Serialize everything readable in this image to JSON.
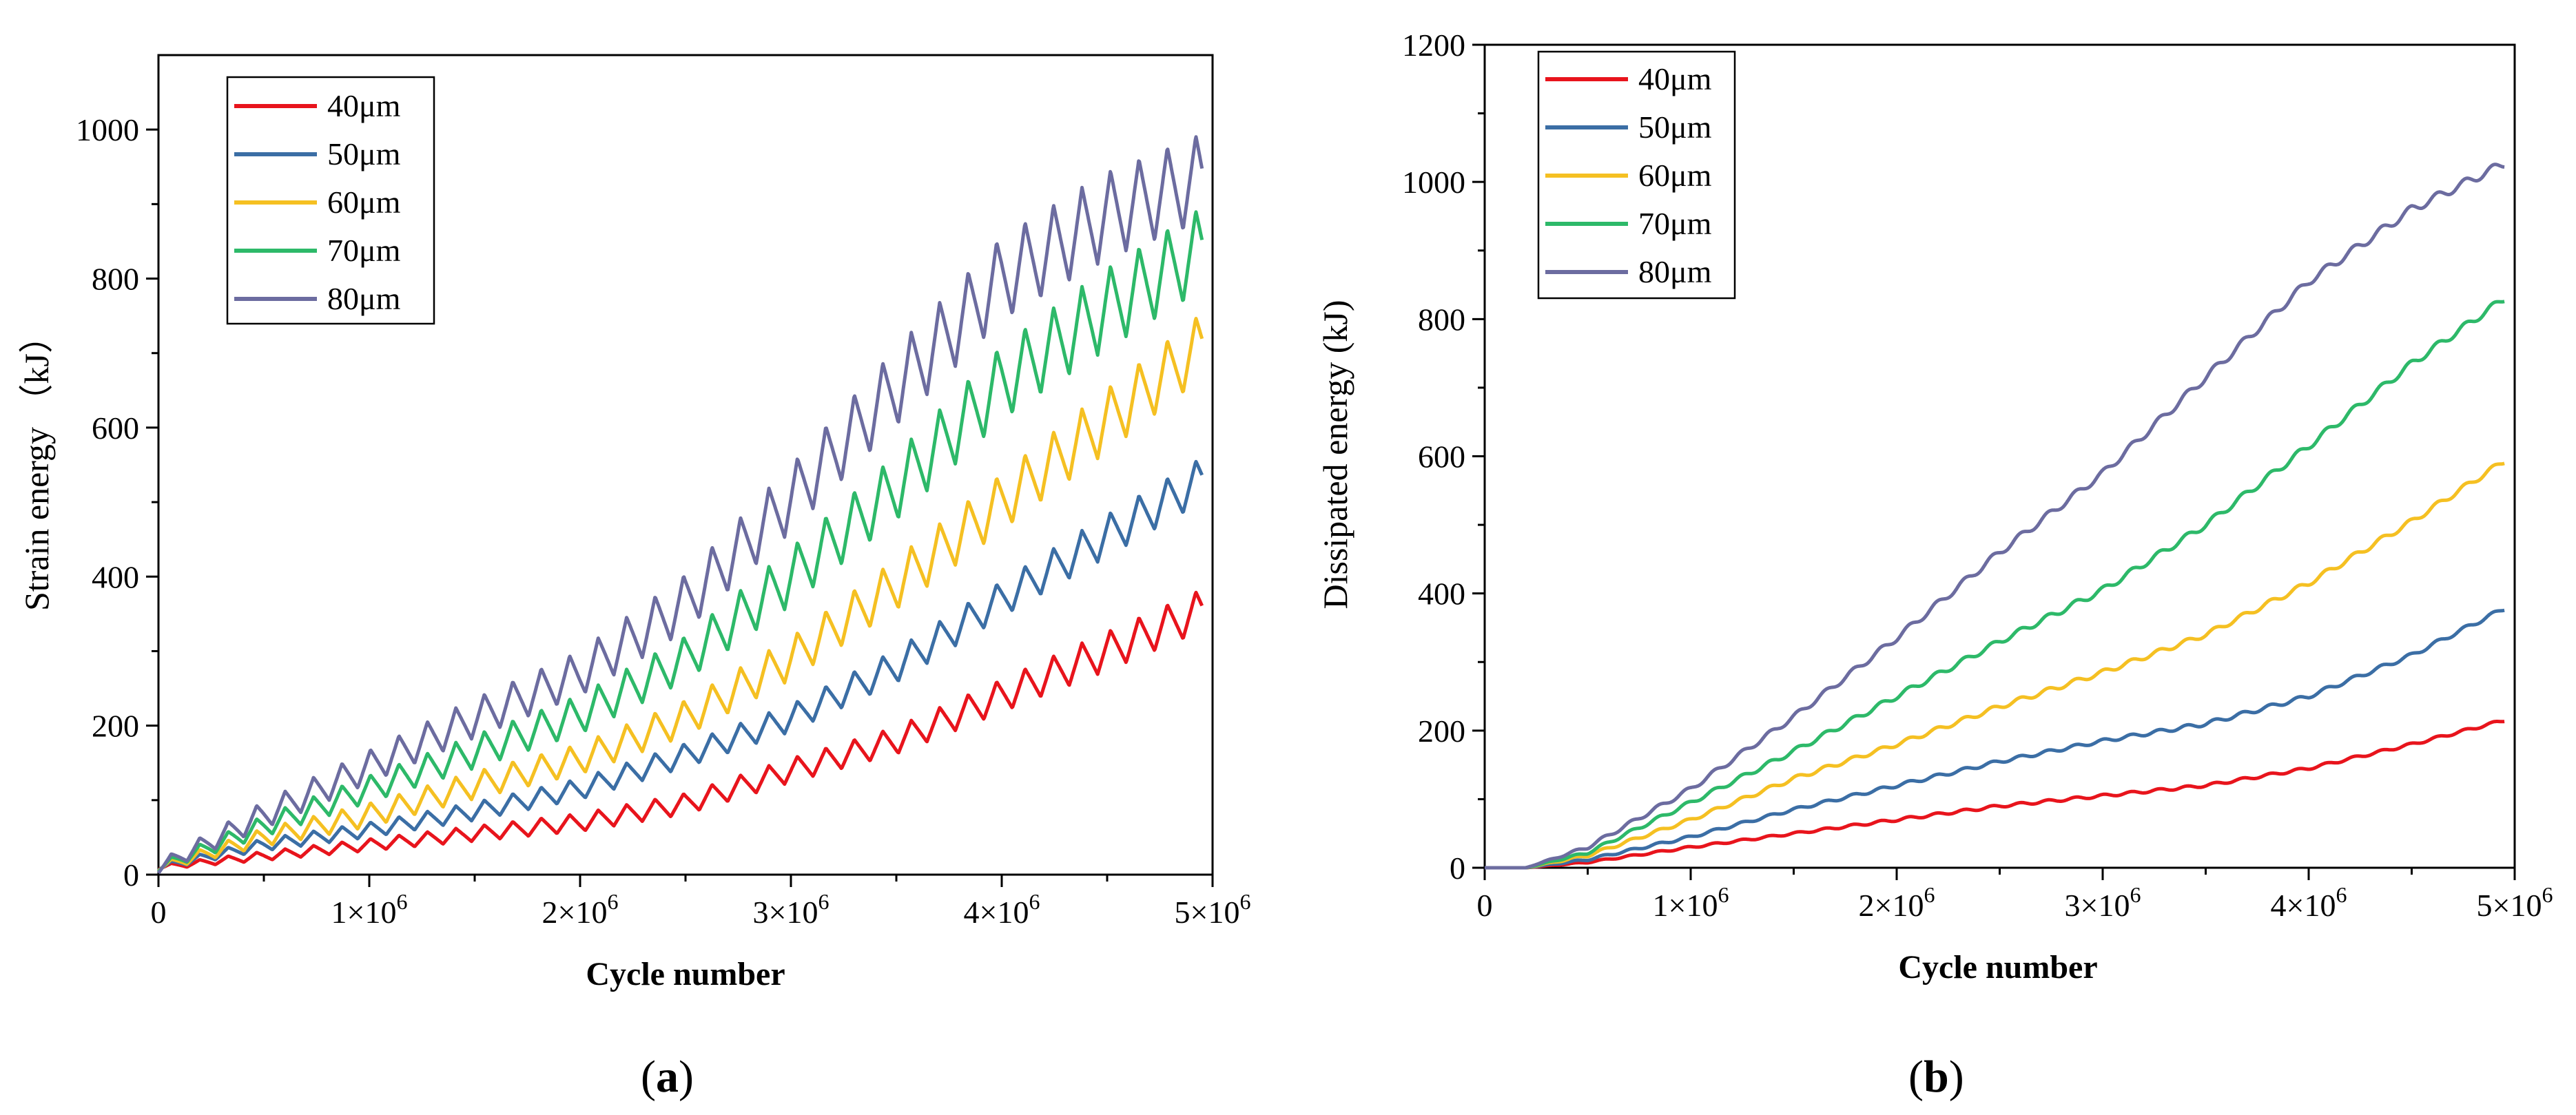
{
  "chart_data": [
    {
      "type": "line",
      "panel_label": "a",
      "xlabel": "Cycle number",
      "ylabel": "Strain energy （kJ）",
      "xlim": [
        0,
        5000000
      ],
      "ylim": [
        0,
        1100
      ],
      "x_ticks": [
        0,
        1000000,
        2000000,
        3000000,
        4000000,
        5000000
      ],
      "x_tick_labels": [
        {
          "base": "0",
          "exp": ""
        },
        {
          "base": "1×10",
          "exp": "6"
        },
        {
          "base": "2×10",
          "exp": "6"
        },
        {
          "base": "3×10",
          "exp": "6"
        },
        {
          "base": "4×10",
          "exp": "6"
        },
        {
          "base": "5×10",
          "exp": "6"
        }
      ],
      "y_ticks": [
        0,
        200,
        400,
        600,
        800,
        1000
      ],
      "y_tick_labels": [
        "0",
        "200",
        "400",
        "600",
        "800",
        "1000"
      ],
      "legend_position": "top-left",
      "pattern": "sawtooth",
      "oscillation_period": 135000,
      "x": [
        0,
        500000,
        1000000,
        1500000,
        2000000,
        2500000,
        3000000,
        3500000,
        4000000,
        4500000,
        4950000
      ],
      "series": [
        {
          "name": "40μm",
          "color": "#e8141c",
          "values": [
            10,
            25,
            40,
            55,
            70,
            95,
            140,
            180,
            240,
            300,
            355
          ],
          "amplitude": [
            3,
            6,
            8,
            10,
            12,
            14,
            16,
            18,
            22,
            26,
            28
          ]
        },
        {
          "name": "50μm",
          "color": "#3b6ea5",
          "values": [
            10,
            40,
            60,
            85,
            115,
            160,
            210,
            280,
            370,
            455,
            530
          ],
          "amplitude": [
            4,
            8,
            10,
            12,
            14,
            16,
            18,
            22,
            24,
            28,
            30
          ]
        },
        {
          "name": "60μm",
          "color": "#f5c022",
          "values": [
            10,
            50,
            80,
            120,
            155,
            210,
            290,
            390,
            500,
            610,
            710
          ],
          "amplitude": [
            5,
            12,
            16,
            18,
            20,
            24,
            28,
            34,
            38,
            42,
            44
          ]
        },
        {
          "name": "70μm",
          "color": "#2db969",
          "values": [
            10,
            65,
            115,
            165,
            215,
            290,
            400,
            520,
            660,
            760,
            840
          ],
          "amplitude": [
            6,
            14,
            18,
            22,
            26,
            30,
            38,
            44,
            50,
            54,
            56
          ]
        },
        {
          "name": "80μm",
          "color": "#6c6ca0",
          "values": [
            10,
            80,
            145,
            210,
            270,
            365,
            505,
            655,
            800,
            885,
            935
          ],
          "amplitude": [
            8,
            18,
            22,
            26,
            30,
            38,
            44,
            52,
            56,
            58,
            60
          ]
        }
      ]
    },
    {
      "type": "line",
      "panel_label": "b",
      "xlabel": "Cycle number",
      "ylabel": "Dissipated energy (kJ)",
      "xlim": [
        0,
        5000000
      ],
      "ylim": [
        0,
        1200
      ],
      "x_ticks": [
        0,
        1000000,
        2000000,
        3000000,
        4000000,
        5000000
      ],
      "x_tick_labels": [
        {
          "base": "0",
          "exp": ""
        },
        {
          "base": "1×10",
          "exp": "6"
        },
        {
          "base": "2×10",
          "exp": "6"
        },
        {
          "base": "3×10",
          "exp": "6"
        },
        {
          "base": "4×10",
          "exp": "6"
        },
        {
          "base": "5×10",
          "exp": "6"
        }
      ],
      "y_ticks": [
        0,
        200,
        400,
        600,
        800,
        1000,
        1200
      ],
      "y_tick_labels": [
        "0",
        "200",
        "400",
        "600",
        "800",
        "1000",
        "1200"
      ],
      "legend_position": "top-left",
      "pattern": "smooth",
      "oscillation_period": 135000,
      "x": [
        0,
        200000,
        500000,
        1000000,
        1500000,
        2000000,
        2500000,
        3000000,
        3500000,
        4000000,
        4500000,
        4950000
      ],
      "series": [
        {
          "name": "40μm",
          "color": "#e8141c",
          "values": [
            0,
            0,
            8,
            30,
            50,
            70,
            90,
            105,
            120,
            145,
            180,
            215
          ],
          "amplitude": [
            0,
            0,
            1,
            1.5,
            1.5,
            2,
            2,
            2,
            2,
            2,
            2,
            2
          ]
        },
        {
          "name": "50μm",
          "color": "#3b6ea5",
          "values": [
            0,
            0,
            12,
            45,
            85,
            120,
            155,
            185,
            210,
            250,
            310,
            378
          ],
          "amplitude": [
            0,
            0,
            1.5,
            2,
            2,
            2.5,
            2.5,
            2.5,
            3,
            3,
            3,
            3
          ]
        },
        {
          "name": "60μm",
          "color": "#f5c022",
          "values": [
            0,
            0,
            18,
            70,
            130,
            180,
            235,
            285,
            340,
            415,
            505,
            593
          ],
          "amplitude": [
            0,
            0,
            2,
            2.5,
            3,
            3,
            3.5,
            3.5,
            3.5,
            4,
            4,
            4
          ]
        },
        {
          "name": "70μm",
          "color": "#2db969",
          "values": [
            0,
            0,
            22,
            95,
            170,
            250,
            330,
            405,
            500,
            615,
            735,
            830
          ],
          "amplitude": [
            0,
            0,
            2,
            3,
            3.5,
            4,
            4,
            4.5,
            4.5,
            5,
            5,
            5
          ]
        },
        {
          "name": "80μm",
          "color": "#6c6ca0",
          "values": [
            0,
            0,
            30,
            115,
            220,
            335,
            460,
            575,
            715,
            855,
            960,
            1027
          ],
          "amplitude": [
            0,
            0,
            2.5,
            3.5,
            4,
            4.5,
            5,
            5,
            5.5,
            5.5,
            6,
            6
          ]
        }
      ]
    }
  ]
}
